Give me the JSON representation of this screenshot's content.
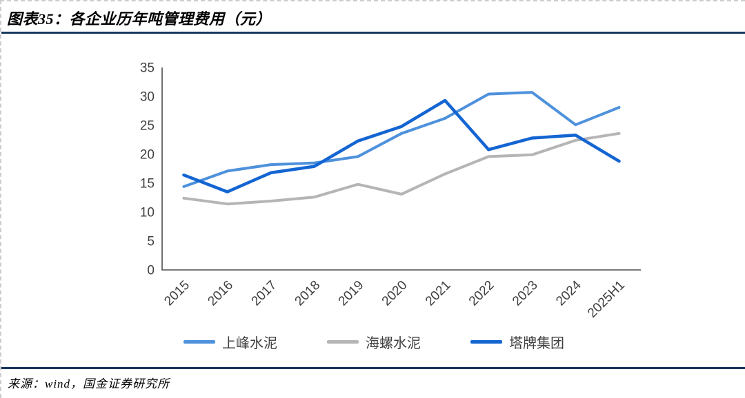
{
  "header": {
    "title": "图表35：各企业历年吨管理费用（元）"
  },
  "footer": {
    "source": "来源：wind，国金证券研究所"
  },
  "accent": {
    "rule_color": "#17375E",
    "axis_color": "#4d4d4d",
    "tick_text_color": "#404040"
  },
  "chart_data": {
    "type": "line",
    "title": "各企业历年吨管理费用（元）",
    "categories": [
      "2015",
      "2016",
      "2017",
      "2018",
      "2019",
      "2020",
      "2021",
      "2022",
      "2023",
      "2024",
      "2025H1"
    ],
    "series": [
      {
        "name": "上峰水泥",
        "color": "#4E91DC",
        "width": 4,
        "values": [
          14.4,
          17.1,
          18.2,
          18.5,
          19.6,
          23.6,
          26.2,
          30.4,
          30.7,
          25.1,
          28.1
        ]
      },
      {
        "name": "海螺水泥",
        "color": "#B5B5B5",
        "width": 4,
        "values": [
          12.4,
          11.4,
          11.9,
          12.6,
          14.8,
          13.1,
          16.6,
          19.6,
          19.9,
          22.4,
          23.6
        ]
      },
      {
        "name": "塔牌集团",
        "color": "#1465D2",
        "width": 4.5,
        "values": [
          16.4,
          13.5,
          16.8,
          17.9,
          22.3,
          24.8,
          29.3,
          20.8,
          22.8,
          23.3,
          18.8
        ]
      }
    ],
    "xlabel": "",
    "ylabel": "",
    "ylim": [
      0,
      35
    ],
    "yticks": [
      0,
      5,
      10,
      15,
      20,
      25,
      30,
      35
    ],
    "grid": false,
    "legend_position": "bottom"
  }
}
